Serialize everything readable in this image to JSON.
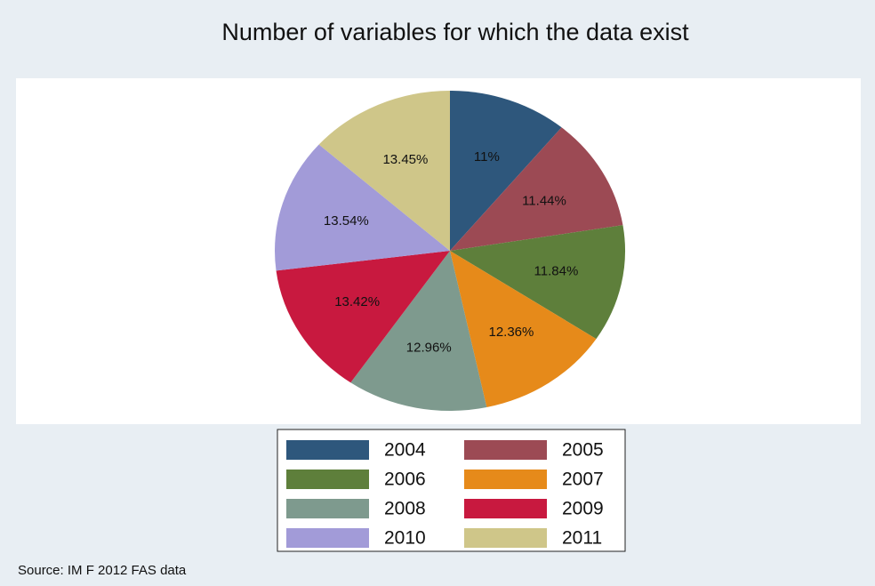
{
  "chart_data": {
    "type": "pie",
    "title": "Number of variables for which the data exist",
    "categories": [
      "2004",
      "2005",
      "2006",
      "2007",
      "2008",
      "2009",
      "2010",
      "2011"
    ],
    "values": [
      11,
      11.44,
      11.84,
      12.36,
      12.96,
      13.42,
      13.54,
      13.45
    ],
    "value_labels": [
      "11%",
      "11.44%",
      "11.84%",
      "12.36%",
      "12.96%",
      "13.42%",
      "13.54%",
      "13.45%"
    ],
    "colors": [
      "#2e577c",
      "#9c4a54",
      "#5e7f3b",
      "#e68a1a",
      "#7e9a8e",
      "#c8193f",
      "#a29bd8",
      "#cfc689"
    ],
    "legend": "bottom",
    "source": "Source: IM F 2012 FAS data"
  }
}
